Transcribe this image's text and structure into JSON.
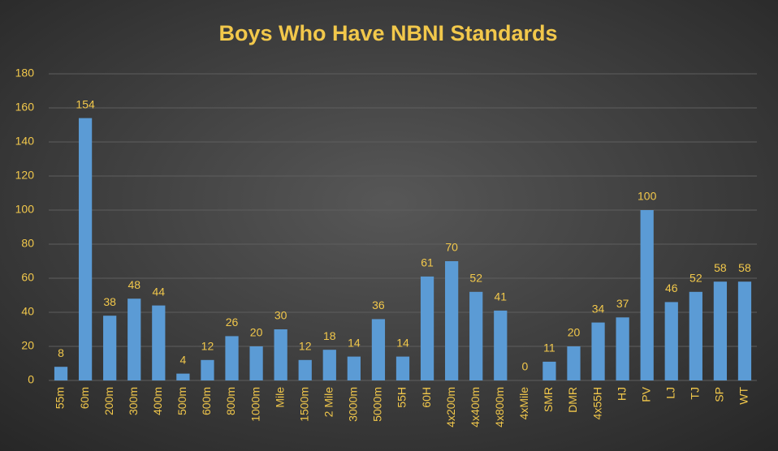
{
  "chart_data": {
    "type": "bar",
    "title": "Boys Who Have NBNI Standards",
    "categories": [
      "55m",
      "60m",
      "200m",
      "300m",
      "400m",
      "500m",
      "600m",
      "800m",
      "1000m",
      "Mile",
      "1500m",
      "2 Mile",
      "3000m",
      "5000m",
      "55H",
      "60H",
      "4x200m",
      "4x400m",
      "4x800m",
      "4xMile",
      "SMR",
      "DMR",
      "4x55H",
      "HJ",
      "PV",
      "LJ",
      "TJ",
      "SP",
      "WT"
    ],
    "values": [
      8,
      154,
      38,
      48,
      44,
      4,
      12,
      26,
      20,
      30,
      12,
      18,
      14,
      36,
      14,
      61,
      70,
      52,
      41,
      0,
      11,
      20,
      34,
      37,
      100,
      46,
      52,
      58,
      58
    ],
    "color": "#5b9bd5",
    "ylim": [
      0,
      180
    ],
    "yticks": [
      0,
      20,
      40,
      60,
      80,
      100,
      120,
      140,
      160,
      180
    ],
    "grid": true
  }
}
